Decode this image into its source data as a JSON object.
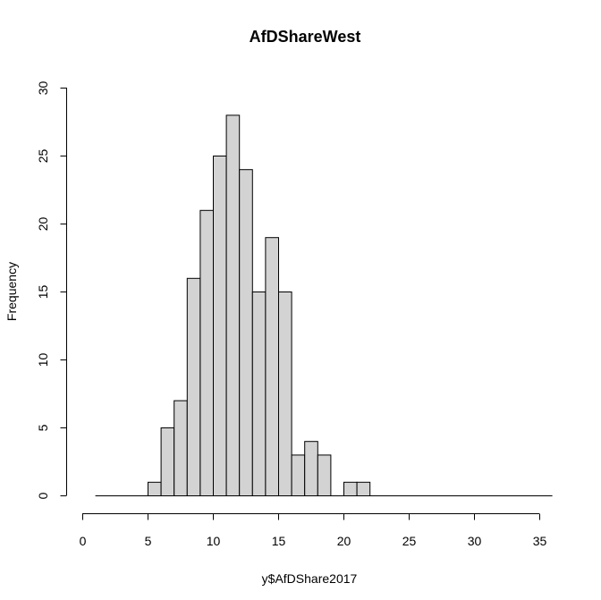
{
  "chart_data": {
    "type": "bar",
    "title": "AfDShareWest",
    "xlabel": "y$AfDShare2017",
    "ylabel": "Frequency",
    "bin_width": 1,
    "bins": [
      {
        "x0": 1,
        "x1": 2,
        "count": 0
      },
      {
        "x0": 2,
        "x1": 3,
        "count": 0
      },
      {
        "x0": 3,
        "x1": 4,
        "count": 0
      },
      {
        "x0": 4,
        "x1": 5,
        "count": 0
      },
      {
        "x0": 5,
        "x1": 6,
        "count": 1
      },
      {
        "x0": 6,
        "x1": 7,
        "count": 5
      },
      {
        "x0": 7,
        "x1": 8,
        "count": 7
      },
      {
        "x0": 8,
        "x1": 9,
        "count": 16
      },
      {
        "x0": 9,
        "x1": 10,
        "count": 21
      },
      {
        "x0": 10,
        "x1": 11,
        "count": 25
      },
      {
        "x0": 11,
        "x1": 12,
        "count": 28
      },
      {
        "x0": 12,
        "x1": 13,
        "count": 24
      },
      {
        "x0": 13,
        "x1": 14,
        "count": 15
      },
      {
        "x0": 14,
        "x1": 15,
        "count": 19
      },
      {
        "x0": 15,
        "x1": 16,
        "count": 15
      },
      {
        "x0": 16,
        "x1": 17,
        "count": 3
      },
      {
        "x0": 17,
        "x1": 18,
        "count": 4
      },
      {
        "x0": 18,
        "x1": 19,
        "count": 3
      },
      {
        "x0": 19,
        "x1": 20,
        "count": 0
      },
      {
        "x0": 20,
        "x1": 21,
        "count": 1
      },
      {
        "x0": 21,
        "x1": 22,
        "count": 1
      }
    ],
    "baseline_range": [
      1,
      36
    ],
    "xlim": [
      0,
      35
    ],
    "ylim": [
      0,
      30
    ],
    "xticks": [
      0,
      5,
      10,
      15,
      20,
      25,
      30,
      35
    ],
    "yticks": [
      0,
      5,
      10,
      15,
      20,
      25,
      30
    ],
    "bar_color": "#d3d3d3",
    "grid": false,
    "legend": "none"
  }
}
